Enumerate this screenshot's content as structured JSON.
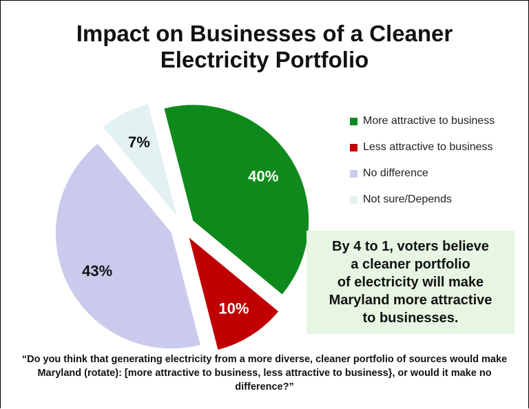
{
  "title_line1": "Impact on Businesses of a Cleaner",
  "title_line2": "Electricity Portfolio",
  "chart_data": {
    "type": "pie",
    "title": "Impact on Businesses of a Cleaner Electricity Portfolio",
    "slices": [
      {
        "label": "More attractive to business",
        "value": 40,
        "display": "40%",
        "color": "#0e8a1c",
        "label_color": "#ffffff"
      },
      {
        "label": "Less attractive to business",
        "value": 10,
        "display": "10%",
        "color": "#c00000",
        "label_color": "#ffffff"
      },
      {
        "label": "No difference",
        "value": 43,
        "display": "43%",
        "color": "#cacbec",
        "label_color": "#111111"
      },
      {
        "label": "Not sure/Depends",
        "value": 7,
        "display": "7%",
        "color": "#e4f1f3",
        "label_color": "#111111"
      }
    ],
    "legend_position": "right"
  },
  "callout": "By 4 to 1, voters believe\na cleaner portfolio\nof electricity will make\nMaryland more attractive\nto businesses.",
  "footnote": "“Do you think that generating electricity from a more diverse, cleaner portfolio of sources would make Maryland (rotate): [more attractive to business, less attractive to business}, or would it make no difference?”"
}
